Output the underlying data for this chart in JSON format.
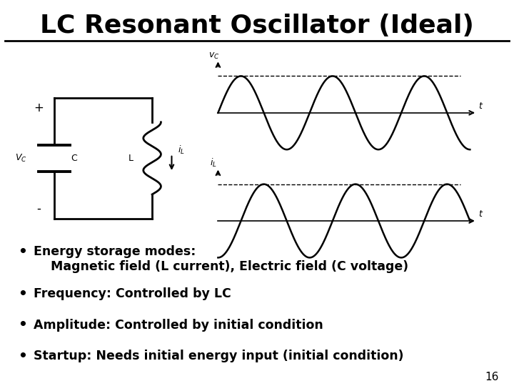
{
  "title": "LC Resonant Oscillator (Ideal)",
  "title_fontsize": 26,
  "title_fontweight": "bold",
  "bg_color": "#ffffff",
  "bullet_points": [
    "Energy storage modes:\n    Magnetic field (L current), Electric field (C voltage)",
    "Frequency: Controlled by LC",
    "Amplitude: Controlled by initial condition",
    "Startup: Needs initial energy input (initial condition)"
  ],
  "bullet_fontsize": 12.5,
  "page_number": "16"
}
